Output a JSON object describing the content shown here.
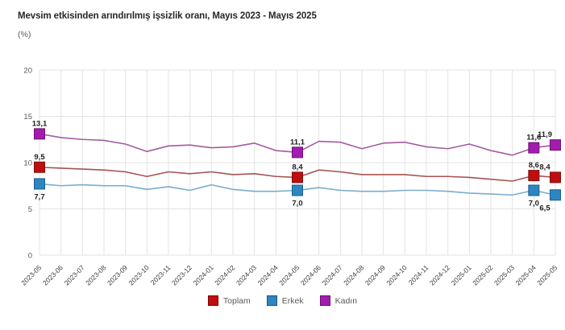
{
  "title": "Mevsim etkisinden arındırılmış işsizlik oranı, Mayıs 2023 - Mayıs 2025",
  "unit_label": "(%)",
  "colors": {
    "background": "#ffffff",
    "gridline": "#e3e3e3",
    "axis_text": "#595959",
    "data_label_text": "#1f1f1f"
  },
  "chart_data": {
    "type": "line",
    "title": "Mevsim etkisinden arındırılmış işsizlik oranı, Mayıs 2023 - Mayıs 2025",
    "ylabel": "(%)",
    "ylim": [
      0,
      20
    ],
    "yticks": [
      0,
      5,
      10,
      15,
      20
    ],
    "grid": true,
    "legend_position": "bottom-center",
    "x": [
      "2023-05",
      "2023-06",
      "2023-07",
      "2023-08",
      "2023-09",
      "2023-10",
      "2023-11",
      "2023-12",
      "2024-01",
      "2024-02",
      "2024-03",
      "2024-04",
      "2024-05",
      "2024-06",
      "2024-07",
      "2024-08",
      "2024-09",
      "2024-10",
      "2024-11",
      "2024-12",
      "2025-01",
      "2025-02",
      "2025-03",
      "2025-04",
      "2025-05"
    ],
    "label_indices": [
      0,
      12,
      23,
      24
    ],
    "series": [
      {
        "name": "Toplam",
        "marker_color": "#c00d0d",
        "marker_border": "#7e0f12",
        "line_color": "#a65252",
        "label_side": "above",
        "values": [
          9.5,
          9.4,
          9.3,
          9.2,
          9.0,
          8.5,
          9.0,
          8.8,
          9.0,
          8.7,
          8.8,
          8.5,
          8.4,
          9.2,
          9.0,
          8.7,
          8.7,
          8.7,
          8.5,
          8.5,
          8.4,
          8.2,
          8.0,
          8.6,
          8.4
        ],
        "point_labels": {
          "0": "9,5",
          "12": "8,4",
          "23": "8,6",
          "24": "8,4"
        }
      },
      {
        "name": "Erkek",
        "marker_color": "#2e86c1",
        "marker_border": "#1b5e8f",
        "line_color": "#7aaccd",
        "label_side": "below",
        "values": [
          7.7,
          7.5,
          7.6,
          7.5,
          7.5,
          7.1,
          7.4,
          7.0,
          7.6,
          7.1,
          6.9,
          6.9,
          7.0,
          7.3,
          7.0,
          6.9,
          6.9,
          7.0,
          7.0,
          6.9,
          6.7,
          6.6,
          6.5,
          7.0,
          6.5
        ],
        "point_labels": {
          "0": "7,7",
          "12": "7,0",
          "23": "7,0",
          "24": "6,5"
        }
      },
      {
        "name": "Kadın",
        "marker_color": "#a21caf",
        "marker_border": "#6e1276",
        "line_color": "#a55ba0",
        "label_side": "above",
        "values": [
          13.1,
          12.7,
          12.5,
          12.4,
          12.0,
          11.2,
          11.8,
          11.9,
          11.6,
          11.7,
          12.1,
          11.3,
          11.1,
          12.3,
          12.2,
          11.5,
          12.1,
          12.2,
          11.7,
          11.5,
          12.0,
          11.3,
          10.8,
          11.6,
          11.9
        ],
        "point_labels": {
          "0": "13,1",
          "12": "11,1",
          "23": "11,6",
          "24": "11,9"
        }
      }
    ]
  }
}
